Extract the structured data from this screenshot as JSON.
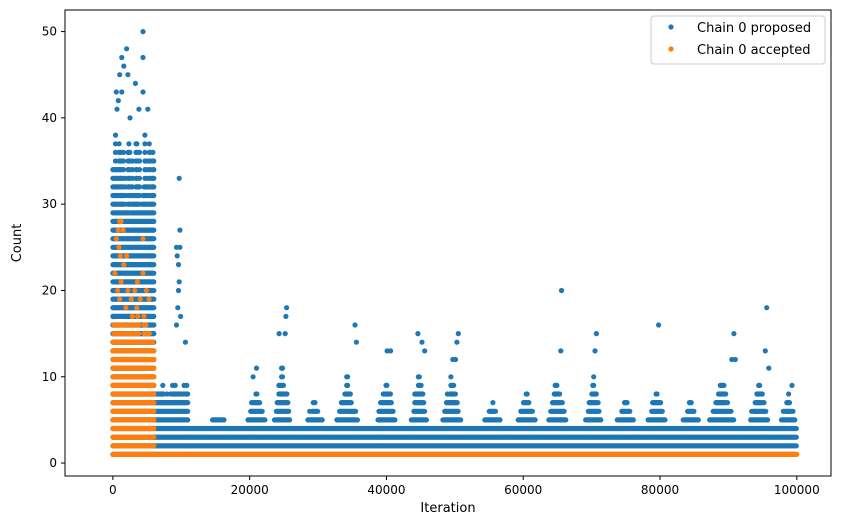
{
  "chart_data": {
    "type": "scatter",
    "xlabel": "Iteration",
    "ylabel": "Count",
    "xlim": [
      -7000,
      105000
    ],
    "ylim": [
      -1.5,
      52.5
    ],
    "x_ticks": [
      0,
      20000,
      40000,
      60000,
      80000,
      100000
    ],
    "x_tick_labels": [
      "0",
      "20000",
      "40000",
      "60000",
      "80000",
      "100000"
    ],
    "y_ticks": [
      0,
      10,
      20,
      30,
      40,
      50
    ],
    "y_tick_labels": [
      "0",
      "10",
      "20",
      "30",
      "40",
      "50"
    ],
    "grid": false,
    "legend_position": "top-right",
    "series": [
      {
        "name": "Chain 0 proposed",
        "color": "#1f77b4",
        "description_of_extent": "dense points for iterations 0–100000",
        "segments": [
          {
            "x_start": 0,
            "x_end": 6000,
            "y_min": 1,
            "y_max": 38
          },
          {
            "x_start": 6000,
            "x_end": 11000,
            "y_min": 1,
            "y_max": 9
          },
          {
            "x_start": 11000,
            "x_end": 100000,
            "y_min": 1,
            "y_max": 4
          }
        ],
        "bursts": [
          {
            "x_start": 13000,
            "x_end": 18000,
            "y_max": 5
          },
          {
            "x_start": 19500,
            "x_end": 22500,
            "y_max": 9
          },
          {
            "x_start": 23500,
            "x_end": 26000,
            "y_max": 13
          },
          {
            "x_start": 28000,
            "x_end": 31000,
            "y_max": 7
          },
          {
            "x_start": 32500,
            "x_end": 36000,
            "y_max": 10
          },
          {
            "x_start": 38500,
            "x_end": 41500,
            "y_max": 10
          },
          {
            "x_start": 43500,
            "x_end": 46000,
            "y_max": 11
          },
          {
            "x_start": 48000,
            "x_end": 51000,
            "y_max": 11
          },
          {
            "x_start": 54000,
            "x_end": 57000,
            "y_max": 7
          },
          {
            "x_start": 59000,
            "x_end": 62000,
            "y_max": 8
          },
          {
            "x_start": 63500,
            "x_end": 66500,
            "y_max": 10
          },
          {
            "x_start": 69000,
            "x_end": 71500,
            "y_max": 11
          },
          {
            "x_start": 73500,
            "x_end": 76500,
            "y_max": 8
          },
          {
            "x_start": 78000,
            "x_end": 81000,
            "y_max": 9
          },
          {
            "x_start": 83000,
            "x_end": 86000,
            "y_max": 7
          },
          {
            "x_start": 87000,
            "x_end": 91000,
            "y_max": 10
          },
          {
            "x_start": 93000,
            "x_end": 96000,
            "y_max": 10
          },
          {
            "x_start": 97500,
            "x_end": 100000,
            "y_max": 8
          }
        ],
        "notable_points": [
          {
            "x": 4400,
            "y": 50
          },
          {
            "x": 2000,
            "y": 48
          },
          {
            "x": 4400,
            "y": 47
          },
          {
            "x": 1300,
            "y": 47
          },
          {
            "x": 1600,
            "y": 46
          },
          {
            "x": 1000,
            "y": 45
          },
          {
            "x": 2200,
            "y": 45
          },
          {
            "x": 3300,
            "y": 44
          },
          {
            "x": 500,
            "y": 43
          },
          {
            "x": 1300,
            "y": 43
          },
          {
            "x": 4400,
            "y": 43
          },
          {
            "x": 800,
            "y": 42
          },
          {
            "x": 600,
            "y": 41
          },
          {
            "x": 3800,
            "y": 41
          },
          {
            "x": 5100,
            "y": 41
          },
          {
            "x": 2500,
            "y": 40
          },
          {
            "x": 9700,
            "y": 33
          },
          {
            "x": 9800,
            "y": 27
          },
          {
            "x": 9300,
            "y": 25
          },
          {
            "x": 9800,
            "y": 25
          },
          {
            "x": 9400,
            "y": 24
          },
          {
            "x": 9600,
            "y": 23
          },
          {
            "x": 9700,
            "y": 21
          },
          {
            "x": 9600,
            "y": 20
          },
          {
            "x": 9500,
            "y": 18
          },
          {
            "x": 9900,
            "y": 17
          },
          {
            "x": 9300,
            "y": 16
          },
          {
            "x": 10600,
            "y": 14
          },
          {
            "x": 25400,
            "y": 18
          },
          {
            "x": 25300,
            "y": 17
          },
          {
            "x": 24300,
            "y": 15
          },
          {
            "x": 25200,
            "y": 15
          },
          {
            "x": 35400,
            "y": 16
          },
          {
            "x": 35600,
            "y": 14
          },
          {
            "x": 40100,
            "y": 13
          },
          {
            "x": 40600,
            "y": 13
          },
          {
            "x": 44600,
            "y": 15
          },
          {
            "x": 45200,
            "y": 14
          },
          {
            "x": 45600,
            "y": 13
          },
          {
            "x": 50500,
            "y": 15
          },
          {
            "x": 50300,
            "y": 14
          },
          {
            "x": 49700,
            "y": 12
          },
          {
            "x": 50100,
            "y": 12
          },
          {
            "x": 65600,
            "y": 20
          },
          {
            "x": 65500,
            "y": 13
          },
          {
            "x": 70700,
            "y": 15
          },
          {
            "x": 70500,
            "y": 13
          },
          {
            "x": 79800,
            "y": 16
          },
          {
            "x": 90800,
            "y": 15
          },
          {
            "x": 90500,
            "y": 12
          },
          {
            "x": 91000,
            "y": 12
          },
          {
            "x": 95600,
            "y": 18
          },
          {
            "x": 95400,
            "y": 13
          },
          {
            "x": 95900,
            "y": 11
          },
          {
            "x": 99300,
            "y": 9
          },
          {
            "x": 21000,
            "y": 11
          },
          {
            "x": 20500,
            "y": 10
          }
        ]
      },
      {
        "name": "Chain 0 accepted",
        "color": "#ff7f0e",
        "description_of_extent": "points for iterations 0–6000 with many counts, then a constant line at count 1",
        "segments": [
          {
            "x_start": 0,
            "x_end": 6000,
            "y_min": 1,
            "y_max": 17
          },
          {
            "x_start": 6000,
            "x_end": 100000,
            "y_min": 1,
            "y_max": 1
          }
        ],
        "notable_points": [
          {
            "x": 1000,
            "y": 28
          },
          {
            "x": 1200,
            "y": 28
          },
          {
            "x": 800,
            "y": 27
          },
          {
            "x": 1500,
            "y": 27
          },
          {
            "x": 4400,
            "y": 26
          },
          {
            "x": 500,
            "y": 26
          },
          {
            "x": 900,
            "y": 25
          },
          {
            "x": 1100,
            "y": 24
          },
          {
            "x": 2000,
            "y": 24
          },
          {
            "x": 1600,
            "y": 23
          },
          {
            "x": 300,
            "y": 22
          },
          {
            "x": 4400,
            "y": 22
          },
          {
            "x": 1200,
            "y": 21
          },
          {
            "x": 3600,
            "y": 21
          },
          {
            "x": 700,
            "y": 20
          },
          {
            "x": 2200,
            "y": 20
          },
          {
            "x": 3200,
            "y": 20
          },
          {
            "x": 4900,
            "y": 20
          },
          {
            "x": 1000,
            "y": 19
          },
          {
            "x": 2700,
            "y": 19
          },
          {
            "x": 4000,
            "y": 19
          },
          {
            "x": 5300,
            "y": 19
          },
          {
            "x": 1900,
            "y": 18
          },
          {
            "x": 3500,
            "y": 18
          }
        ]
      }
    ]
  }
}
